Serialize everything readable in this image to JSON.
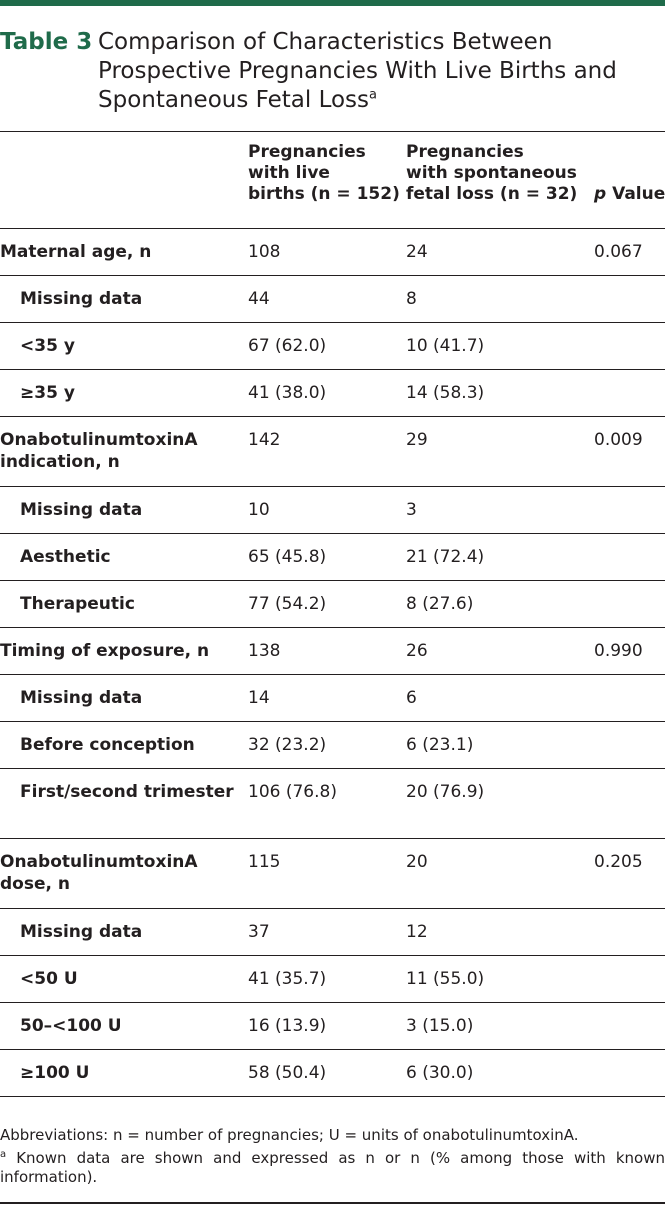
{
  "table_label": "Table 3",
  "title_lines": [
    "Comparison of Characteristics Between",
    "Prospective Pregnancies With Live Births and",
    "Spontaneous Fetal Loss"
  ],
  "title_sup": "a",
  "headers": {
    "col2": [
      "Pregnancies",
      "with live",
      "births (n = 152)"
    ],
    "col3": [
      "Pregnancies",
      "with spontaneous",
      "fetal loss (n = 32)"
    ],
    "col4_italic": "p",
    "col4_rest": " Value"
  },
  "rows": [
    {
      "label": "Maternal age, n",
      "live": "108",
      "loss": "24",
      "p": "0.067",
      "sub": false
    },
    {
      "label": "Missing data",
      "live": "44",
      "loss": "8",
      "p": "",
      "sub": true
    },
    {
      "label": "<35 y",
      "live": "67 (62.0)",
      "loss": "10 (41.7)",
      "p": "",
      "sub": true
    },
    {
      "label": "≥35 y",
      "live": "41 (38.0)",
      "loss": "14 (58.3)",
      "p": "",
      "sub": true
    },
    {
      "label": "OnabotulinumtoxinA indication, n",
      "live": "142",
      "loss": "29",
      "p": "0.009",
      "sub": false
    },
    {
      "label": "Missing data",
      "live": "10",
      "loss": "3",
      "p": "",
      "sub": true
    },
    {
      "label": "Aesthetic",
      "live": "65 (45.8)",
      "loss": "21 (72.4)",
      "p": "",
      "sub": true
    },
    {
      "label": "Therapeutic",
      "live": "77 (54.2)",
      "loss": "8 (27.6)",
      "p": "",
      "sub": true
    },
    {
      "label": "Timing of exposure, n",
      "live": "138",
      "loss": "26",
      "p": "0.990",
      "sub": false
    },
    {
      "label": "Missing data",
      "live": "14",
      "loss": "6",
      "p": "",
      "sub": true
    },
    {
      "label": "Before conception",
      "live": "32 (23.2)",
      "loss": "6 (23.1)",
      "p": "",
      "sub": true
    },
    {
      "label": "First/second trimester",
      "live": "106 (76.8)",
      "loss": "20 (76.9)",
      "p": "",
      "sub": true
    },
    {
      "label": "OnabotulinumtoxinA dose, n",
      "live": "115",
      "loss": "20",
      "p": "0.205",
      "sub": false
    },
    {
      "label": "Missing data",
      "live": "37",
      "loss": "12",
      "p": "",
      "sub": true
    },
    {
      "label": "<50 U",
      "live": "41 (35.7)",
      "loss": "11 (55.0)",
      "p": "",
      "sub": true
    },
    {
      "label": "50–<100 U",
      "live": "16 (13.9)",
      "loss": "3 (15.0)",
      "p": "",
      "sub": true
    },
    {
      "label": "≥100 U",
      "live": "58 (50.4)",
      "loss": "6 (30.0)",
      "p": "",
      "sub": true
    }
  ],
  "footnotes": {
    "abbrev": "Abbreviations: n = number of pregnancies; U = units of onabotulinumtoxinA.",
    "note_sup": "a",
    "note": " Known data are shown and expressed as n or n (% among those with known information)."
  }
}
